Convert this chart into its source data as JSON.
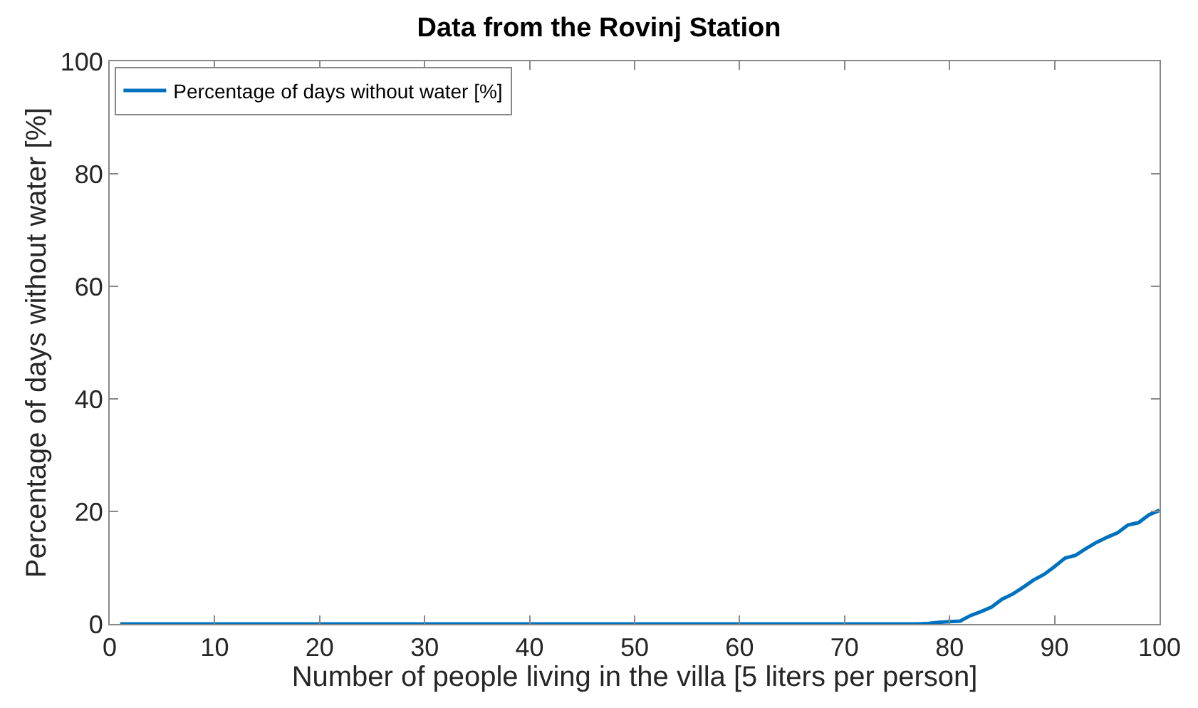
{
  "chart_data": {
    "type": "line",
    "title": "Data from the Rovinj Station",
    "xlabel": "Number of people living in the villa [5 liters per person]",
    "ylabel": "Percentage of days without water [%]",
    "series": [
      {
        "name": "Percentage of days without water [%]",
        "color": "#0072bd",
        "x": [
          1,
          10,
          20,
          30,
          40,
          50,
          60,
          70,
          76,
          77,
          78,
          79,
          80,
          81,
          82,
          83,
          84,
          85,
          86,
          87,
          88,
          89,
          90,
          91,
          92,
          93,
          94,
          95,
          96,
          97,
          98,
          99,
          100
        ],
        "values": [
          0,
          0,
          0,
          0,
          0,
          0,
          0,
          0,
          0,
          0,
          0.1,
          0.3,
          0.4,
          0.5,
          1.5,
          2.2,
          3,
          4.4,
          5.3,
          6.5,
          7.8,
          8.8,
          10.2,
          11.7,
          12.2,
          13.4,
          14.5,
          15.4,
          16.2,
          17.6,
          18,
          19.4,
          20.2
        ]
      }
    ],
    "xlim": [
      0,
      100
    ],
    "xticks": [
      0,
      10,
      20,
      30,
      40,
      50,
      60,
      70,
      80,
      90,
      100
    ],
    "ylim": [
      0,
      100
    ],
    "yticks": [
      0,
      20,
      40,
      60,
      80,
      100
    ],
    "legend": "top left",
    "line_style": "solid"
  }
}
